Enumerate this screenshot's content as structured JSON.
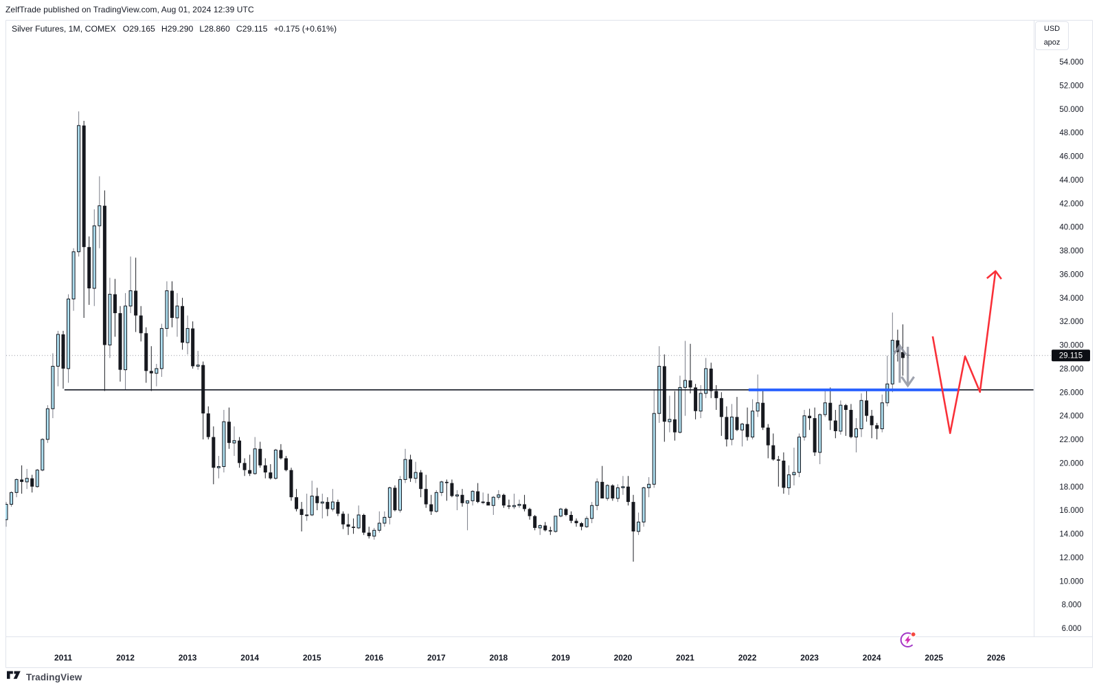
{
  "attribution": {
    "text": "ZelfTrade published on TradingView.com, Aug 01, 2024 12:39 UTC"
  },
  "legend": {
    "symbol": "Silver Futures, 1M, COMEX",
    "values": [
      "O29.165",
      "H29.290",
      "L28.860",
      "C29.115",
      "+0.175 (+0.61%)"
    ]
  },
  "price_axis": {
    "unit_box": [
      "USD",
      "apoz"
    ],
    "ticks": [
      "54.000",
      "52.000",
      "50.000",
      "48.000",
      "46.000",
      "44.000",
      "42.000",
      "40.000",
      "38.000",
      "36.000",
      "34.000",
      "32.000",
      "30.000",
      "28.000",
      "26.000",
      "24.000",
      "22.000",
      "20.000",
      "18.000",
      "16.000",
      "14.000",
      "12.000",
      "10.000",
      "8.000",
      "6.000"
    ],
    "price_label": "29.115"
  },
  "time_axis": {
    "years": [
      "2011",
      "2012",
      "2013",
      "2014",
      "2015",
      "2016",
      "2017",
      "2018",
      "2019",
      "2020",
      "2021",
      "2022",
      "2023",
      "2024",
      "2025",
      "2026"
    ]
  },
  "footer": {
    "brand": "TradingView"
  },
  "colors": {
    "up_fill": "#aedff0",
    "up_border": "#11141c",
    "up_wick": "#787b86",
    "down_fill": "#17191f",
    "down_wick": "#1b1d23",
    "text": "#131722",
    "frame": "#e0e3eb",
    "support_line": "#131722",
    "blue_ray": "#2962ff",
    "dotted_price_line": "#9598a1",
    "price_label_bg": "#0c0e14",
    "price_label_text": "#ffffff",
    "projection_red": "#f93038",
    "gray_arrow": "#8f94a0",
    "badge_purple": "#a136c6",
    "badge_magenta": "#d32bb4",
    "badge_dot": "#f5483f"
  },
  "chart_data": {
    "type": "candlestick",
    "title": "Silver Futures, 1M, COMEX",
    "timeframe": "1M",
    "unit": "USD / apoz",
    "ylim": [
      6.0,
      54.0
    ],
    "x_years_shown": [
      2011,
      2026
    ],
    "grid": "off",
    "last_price": 29.115,
    "candles_format": [
      "month",
      "open",
      "high",
      "low",
      "close"
    ],
    "candles": [
      [
        "2010-02",
        15.2,
        16.7,
        14.6,
        16.5
      ],
      [
        "2010-03",
        16.5,
        17.6,
        16.3,
        17.5
      ],
      [
        "2010-04",
        17.5,
        18.7,
        17.1,
        18.6
      ],
      [
        "2010-05",
        18.6,
        19.8,
        17.4,
        18.4
      ],
      [
        "2010-06",
        18.4,
        19.5,
        17.8,
        18.7
      ],
      [
        "2010-07",
        18.7,
        19.0,
        17.5,
        18.0
      ],
      [
        "2010-08",
        18.0,
        19.5,
        17.9,
        19.4
      ],
      [
        "2010-09",
        19.4,
        22.1,
        19.3,
        22.0
      ],
      [
        "2010-10",
        22.0,
        24.9,
        21.7,
        24.6
      ],
      [
        "2010-11",
        24.6,
        29.3,
        23.8,
        28.2
      ],
      [
        "2010-12",
        28.2,
        31.2,
        26.5,
        30.9
      ],
      [
        "2011-01",
        30.9,
        31.2,
        26.3,
        28.0
      ],
      [
        "2011-02",
        28.0,
        34.3,
        26.8,
        33.9
      ],
      [
        "2011-03",
        33.9,
        38.2,
        32.9,
        37.9
      ],
      [
        "2011-04",
        37.9,
        49.8,
        37.5,
        48.6
      ],
      [
        "2011-05",
        48.6,
        49.0,
        32.3,
        38.3
      ],
      [
        "2011-06",
        38.3,
        39.2,
        33.4,
        34.8
      ],
      [
        "2011-07",
        34.8,
        41.5,
        33.3,
        40.1
      ],
      [
        "2011-08",
        40.1,
        44.3,
        38.2,
        41.8
      ],
      [
        "2011-09",
        41.8,
        43.1,
        26.1,
        30.0
      ],
      [
        "2011-10",
        30.0,
        35.7,
        28.9,
        34.3
      ],
      [
        "2011-11",
        34.3,
        35.6,
        30.7,
        32.7
      ],
      [
        "2011-12",
        32.7,
        33.3,
        26.9,
        27.9
      ],
      [
        "2012-01",
        27.9,
        34.4,
        26.2,
        33.3
      ],
      [
        "2012-02",
        33.3,
        37.5,
        32.7,
        34.6
      ],
      [
        "2012-03",
        34.6,
        37.4,
        31.1,
        32.5
      ],
      [
        "2012-04",
        32.5,
        33.3,
        30.3,
        31.0
      ],
      [
        "2012-05",
        31.0,
        31.5,
        26.8,
        27.8
      ],
      [
        "2012-06",
        27.8,
        29.9,
        26.1,
        27.6
      ],
      [
        "2012-07",
        27.6,
        28.4,
        26.5,
        28.0
      ],
      [
        "2012-08",
        28.0,
        31.8,
        27.3,
        31.4
      ],
      [
        "2012-09",
        31.4,
        35.4,
        30.7,
        34.6
      ],
      [
        "2012-10",
        34.6,
        35.4,
        31.5,
        32.3
      ],
      [
        "2012-11",
        32.3,
        34.4,
        30.7,
        33.3
      ],
      [
        "2012-12",
        33.3,
        34.0,
        29.6,
        30.2
      ],
      [
        "2013-01",
        30.2,
        32.5,
        29.2,
        31.4
      ],
      [
        "2013-02",
        31.4,
        32.0,
        28.0,
        28.2
      ],
      [
        "2013-03",
        28.2,
        29.5,
        27.9,
        28.3
      ],
      [
        "2013-04",
        28.3,
        28.6,
        22.0,
        24.2
      ],
      [
        "2013-05",
        24.2,
        24.8,
        22.0,
        22.2
      ],
      [
        "2013-06",
        22.2,
        23.1,
        18.2,
        19.6
      ],
      [
        "2013-07",
        19.6,
        20.6,
        18.7,
        19.7
      ],
      [
        "2013-08",
        19.7,
        24.5,
        19.2,
        23.5
      ],
      [
        "2013-09",
        23.5,
        24.7,
        21.2,
        21.7
      ],
      [
        "2013-10",
        21.7,
        23.1,
        20.6,
        21.9
      ],
      [
        "2013-11",
        21.9,
        22.2,
        19.6,
        20.0
      ],
      [
        "2013-12",
        20.0,
        20.4,
        18.9,
        19.4
      ],
      [
        "2014-01",
        19.4,
        20.7,
        18.9,
        19.1
      ],
      [
        "2014-02",
        19.1,
        22.2,
        19.0,
        21.2
      ],
      [
        "2014-03",
        21.2,
        21.8,
        19.6,
        19.8
      ],
      [
        "2014-04",
        19.8,
        20.4,
        18.7,
        19.2
      ],
      [
        "2014-05",
        19.2,
        19.9,
        18.6,
        18.7
      ],
      [
        "2014-06",
        18.7,
        21.2,
        18.6,
        21.1
      ],
      [
        "2014-07",
        21.1,
        21.6,
        20.3,
        20.4
      ],
      [
        "2014-08",
        20.4,
        20.6,
        19.3,
        19.4
      ],
      [
        "2014-09",
        19.4,
        19.6,
        16.8,
        17.1
      ],
      [
        "2014-10",
        17.1,
        17.8,
        15.9,
        16.1
      ],
      [
        "2014-11",
        16.1,
        16.7,
        14.2,
        15.6
      ],
      [
        "2014-12",
        15.6,
        17.4,
        15.1,
        15.6
      ],
      [
        "2015-01",
        15.6,
        18.5,
        15.5,
        17.2
      ],
      [
        "2015-02",
        17.2,
        17.9,
        16.0,
        16.6
      ],
      [
        "2015-03",
        16.6,
        17.4,
        15.3,
        16.7
      ],
      [
        "2015-04",
        16.7,
        17.1,
        15.5,
        16.1
      ],
      [
        "2015-05",
        16.1,
        17.8,
        15.9,
        16.7
      ],
      [
        "2015-06",
        16.7,
        16.9,
        15.5,
        15.7
      ],
      [
        "2015-07",
        15.7,
        15.9,
        14.4,
        14.8
      ],
      [
        "2015-08",
        14.8,
        15.7,
        13.9,
        14.6
      ],
      [
        "2015-09",
        14.6,
        15.3,
        14.0,
        14.5
      ],
      [
        "2015-10",
        14.5,
        16.4,
        14.4,
        15.6
      ],
      [
        "2015-11",
        15.6,
        15.7,
        13.9,
        14.1
      ],
      [
        "2015-12",
        14.1,
        14.6,
        13.6,
        13.8
      ],
      [
        "2016-01",
        13.8,
        14.5,
        13.5,
        14.3
      ],
      [
        "2016-02",
        14.3,
        15.9,
        14.1,
        14.9
      ],
      [
        "2016-03",
        14.9,
        15.9,
        14.6,
        15.4
      ],
      [
        "2016-04",
        15.4,
        18.0,
        14.8,
        17.9
      ],
      [
        "2016-05",
        17.9,
        18.1,
        15.9,
        16.0
      ],
      [
        "2016-06",
        16.0,
        18.9,
        15.8,
        18.6
      ],
      [
        "2016-07",
        18.6,
        21.2,
        18.3,
        20.3
      ],
      [
        "2016-08",
        20.3,
        20.7,
        18.4,
        18.7
      ],
      [
        "2016-09",
        18.7,
        20.1,
        18.3,
        19.2
      ],
      [
        "2016-10",
        19.2,
        19.4,
        17.1,
        17.8
      ],
      [
        "2016-11",
        17.8,
        19.0,
        16.2,
        16.5
      ],
      [
        "2016-12",
        16.5,
        17.3,
        15.6,
        15.9
      ],
      [
        "2017-01",
        15.9,
        17.7,
        15.8,
        17.5
      ],
      [
        "2017-02",
        17.5,
        18.5,
        17.2,
        18.4
      ],
      [
        "2017-03",
        18.4,
        18.6,
        16.8,
        18.3
      ],
      [
        "2017-04",
        18.3,
        18.6,
        17.1,
        17.2
      ],
      [
        "2017-05",
        17.2,
        17.7,
        16.0,
        17.3
      ],
      [
        "2017-06",
        17.3,
        17.8,
        16.3,
        16.6
      ],
      [
        "2017-07",
        16.6,
        16.8,
        14.3,
        16.8
      ],
      [
        "2017-08",
        16.8,
        17.7,
        16.4,
        17.6
      ],
      [
        "2017-09",
        17.6,
        18.3,
        16.6,
        16.7
      ],
      [
        "2017-10",
        16.7,
        17.5,
        16.5,
        16.7
      ],
      [
        "2017-11",
        16.7,
        17.4,
        16.5,
        16.4
      ],
      [
        "2017-12",
        16.4,
        17.2,
        15.6,
        17.1
      ],
      [
        "2018-01",
        17.1,
        17.7,
        16.9,
        17.3
      ],
      [
        "2018-02",
        17.3,
        17.4,
        16.2,
        16.4
      ],
      [
        "2018-03",
        16.4,
        16.9,
        16.1,
        16.3
      ],
      [
        "2018-04",
        16.3,
        17.4,
        16.1,
        16.4
      ],
      [
        "2018-05",
        16.4,
        16.9,
        16.2,
        16.5
      ],
      [
        "2018-06",
        16.5,
        17.3,
        15.9,
        16.1
      ],
      [
        "2018-07",
        16.1,
        16.2,
        15.2,
        15.5
      ],
      [
        "2018-08",
        15.5,
        15.6,
        14.3,
        14.5
      ],
      [
        "2018-09",
        14.5,
        14.8,
        13.9,
        14.7
      ],
      [
        "2018-10",
        14.7,
        15.0,
        14.2,
        14.3
      ],
      [
        "2018-11",
        14.3,
        14.6,
        13.9,
        14.2
      ],
      [
        "2018-12",
        14.2,
        15.5,
        14.1,
        15.5
      ],
      [
        "2019-01",
        15.5,
        16.2,
        15.4,
        16.1
      ],
      [
        "2019-02",
        16.1,
        16.2,
        15.5,
        15.6
      ],
      [
        "2019-03",
        15.6,
        15.9,
        14.9,
        15.1
      ],
      [
        "2019-04",
        15.1,
        15.3,
        14.6,
        14.9
      ],
      [
        "2019-05",
        14.9,
        15.0,
        14.3,
        14.6
      ],
      [
        "2019-06",
        14.6,
        15.5,
        14.5,
        15.3
      ],
      [
        "2019-07",
        15.3,
        16.7,
        14.9,
        16.4
      ],
      [
        "2019-08",
        16.4,
        18.7,
        16.0,
        18.4
      ],
      [
        "2019-09",
        18.4,
        19.75,
        17.0,
        17.0
      ],
      [
        "2019-10",
        17.0,
        18.2,
        16.8,
        18.1
      ],
      [
        "2019-11",
        18.1,
        18.2,
        16.8,
        17.0
      ],
      [
        "2019-12",
        17.0,
        18.2,
        16.7,
        17.9
      ],
      [
        "2020-01",
        17.9,
        18.9,
        17.3,
        18.0
      ],
      [
        "2020-02",
        18.0,
        18.9,
        16.4,
        16.7
      ],
      [
        "2020-03",
        16.7,
        17.3,
        11.64,
        14.2
      ],
      [
        "2020-04",
        14.2,
        15.8,
        13.9,
        15.0
      ],
      [
        "2020-05",
        15.0,
        18.0,
        14.6,
        17.9
      ],
      [
        "2020-06",
        17.9,
        18.8,
        17.1,
        18.2
      ],
      [
        "2020-07",
        18.2,
        26.2,
        17.9,
        24.2
      ],
      [
        "2020-08",
        24.2,
        29.9,
        23.4,
        28.2
      ],
      [
        "2020-09",
        28.2,
        29.2,
        21.8,
        23.5
      ],
      [
        "2020-10",
        23.5,
        25.7,
        22.6,
        23.7
      ],
      [
        "2020-11",
        23.7,
        26.1,
        21.9,
        22.6
      ],
      [
        "2020-12",
        22.6,
        27.4,
        22.5,
        26.4
      ],
      [
        "2021-01",
        26.4,
        30.35,
        24.0,
        27.0
      ],
      [
        "2021-02",
        27.0,
        30.1,
        25.9,
        26.4
      ],
      [
        "2021-03",
        26.4,
        26.7,
        23.7,
        24.4
      ],
      [
        "2021-04",
        24.4,
        26.6,
        23.8,
        25.9
      ],
      [
        "2021-05",
        25.9,
        28.9,
        25.5,
        28.0
      ],
      [
        "2021-06",
        28.0,
        28.5,
        25.5,
        26.1
      ],
      [
        "2021-07",
        26.1,
        26.6,
        24.5,
        25.5
      ],
      [
        "2021-08",
        25.5,
        26.0,
        22.3,
        23.9
      ],
      [
        "2021-09",
        23.9,
        24.8,
        21.4,
        22.0
      ],
      [
        "2021-10",
        22.0,
        25.0,
        21.5,
        23.9
      ],
      [
        "2021-11",
        23.9,
        25.6,
        22.7,
        22.8
      ],
      [
        "2021-12",
        22.8,
        23.4,
        21.4,
        23.3
      ],
      [
        "2022-01",
        23.3,
        24.7,
        21.9,
        22.2
      ],
      [
        "2022-02",
        22.2,
        25.4,
        22.0,
        24.4
      ],
      [
        "2022-03",
        24.4,
        27.5,
        23.9,
        25.1
      ],
      [
        "2022-04",
        25.1,
        26.2,
        22.8,
        23.0
      ],
      [
        "2022-05",
        23.0,
        23.3,
        20.4,
        21.5
      ],
      [
        "2022-06",
        21.5,
        22.5,
        20.2,
        20.3
      ],
      [
        "2022-07",
        20.3,
        20.6,
        18.0,
        20.2
      ],
      [
        "2022-08",
        20.2,
        20.9,
        17.4,
        17.9
      ],
      [
        "2022-09",
        17.9,
        19.8,
        17.3,
        19.0
      ],
      [
        "2022-10",
        19.0,
        21.3,
        18.1,
        19.2
      ],
      [
        "2022-11",
        19.2,
        22.5,
        18.8,
        22.2
      ],
      [
        "2022-12",
        22.2,
        24.5,
        21.9,
        24.0
      ],
      [
        "2023-01",
        24.0,
        24.6,
        22.8,
        23.8
      ],
      [
        "2023-02",
        23.8,
        24.7,
        20.6,
        20.9
      ],
      [
        "2023-03",
        20.9,
        24.2,
        19.9,
        24.1
      ],
      [
        "2023-04",
        24.1,
        26.1,
        23.9,
        25.1
      ],
      [
        "2023-05",
        25.1,
        26.4,
        22.8,
        23.6
      ],
      [
        "2023-06",
        23.6,
        24.5,
        22.1,
        22.7
      ],
      [
        "2023-07",
        22.7,
        25.3,
        22.4,
        24.9
      ],
      [
        "2023-08",
        24.9,
        25.0,
        22.3,
        24.5
      ],
      [
        "2023-09",
        24.5,
        25.0,
        22.1,
        22.2
      ],
      [
        "2023-10",
        22.2,
        23.8,
        20.9,
        22.9
      ],
      [
        "2023-11",
        22.9,
        25.9,
        22.2,
        25.3
      ],
      [
        "2023-12",
        25.3,
        26.3,
        23.5,
        24.0
      ],
      [
        "2024-01",
        24.0,
        24.5,
        22.1,
        23.2
      ],
      [
        "2024-02",
        23.2,
        23.4,
        22.0,
        22.9
      ],
      [
        "2024-03",
        22.9,
        25.8,
        22.6,
        25.1
      ],
      [
        "2024-04",
        25.1,
        29.1,
        24.8,
        26.7
      ],
      [
        "2024-05",
        26.7,
        32.75,
        26.0,
        30.4
      ],
      [
        "2024-06",
        30.4,
        31.3,
        28.6,
        29.4
      ],
      [
        "2024-07",
        29.4,
        31.75,
        27.4,
        28.9
      ],
      [
        "2024-08",
        29.165,
        29.29,
        28.86,
        29.115
      ]
    ],
    "drawings": {
      "support_line": {
        "price": 26.2,
        "t_from": 2011.02,
        "t_to": 2026.6
      },
      "blue_ray": {
        "price": 26.2,
        "t_from": 2022.02,
        "t_to": 2025.41
      },
      "current_price_line": {
        "price": 29.115
      },
      "projection_zigzag": {
        "points_time_price": [
          [
            2024.98,
            30.73
          ],
          [
            2025.26,
            22.53
          ],
          [
            2025.5,
            29.04
          ],
          [
            2025.74,
            26.02
          ],
          [
            2025.99,
            36.26
          ]
        ],
        "arrowhead": "end"
      },
      "arrow_markers": [
        {
          "dir": "up",
          "t": 2024.45,
          "p_from": 26.8,
          "p_to": 29.95
        },
        {
          "dir": "down",
          "t": 2024.58,
          "p_from": 29.85,
          "p_to": 26.55
        }
      ],
      "idea_badge": {
        "t": 2024.58
      }
    }
  }
}
